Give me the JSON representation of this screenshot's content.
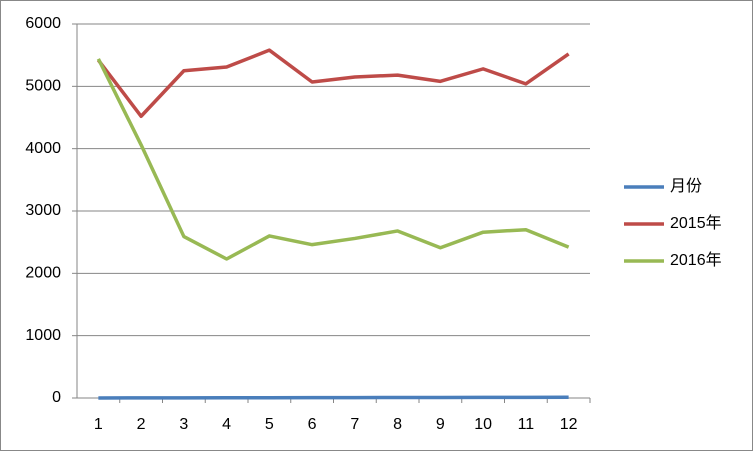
{
  "chart_data": {
    "type": "line",
    "categories": [
      "1",
      "2",
      "3",
      "4",
      "5",
      "6",
      "7",
      "8",
      "9",
      "10",
      "11",
      "12"
    ],
    "series": [
      {
        "name": "月份",
        "color": "#4a7ebb",
        "values": [
          1,
          2,
          3,
          4,
          5,
          6,
          7,
          8,
          9,
          10,
          11,
          12
        ]
      },
      {
        "name": "2015年",
        "color": "#be4b48",
        "values": [
          5420,
          4520,
          5250,
          5310,
          5580,
          5070,
          5150,
          5180,
          5080,
          5280,
          5040,
          5520
        ]
      },
      {
        "name": "2016年",
        "color": "#98b954",
        "values": [
          5440,
          4060,
          2590,
          2230,
          2600,
          2460,
          2560,
          2680,
          2410,
          2660,
          2700,
          2420
        ]
      }
    ],
    "ylim": [
      0,
      6000
    ],
    "yticks": [
      0,
      1000,
      2000,
      3000,
      4000,
      5000,
      6000
    ],
    "grid": true,
    "legend": "right"
  }
}
